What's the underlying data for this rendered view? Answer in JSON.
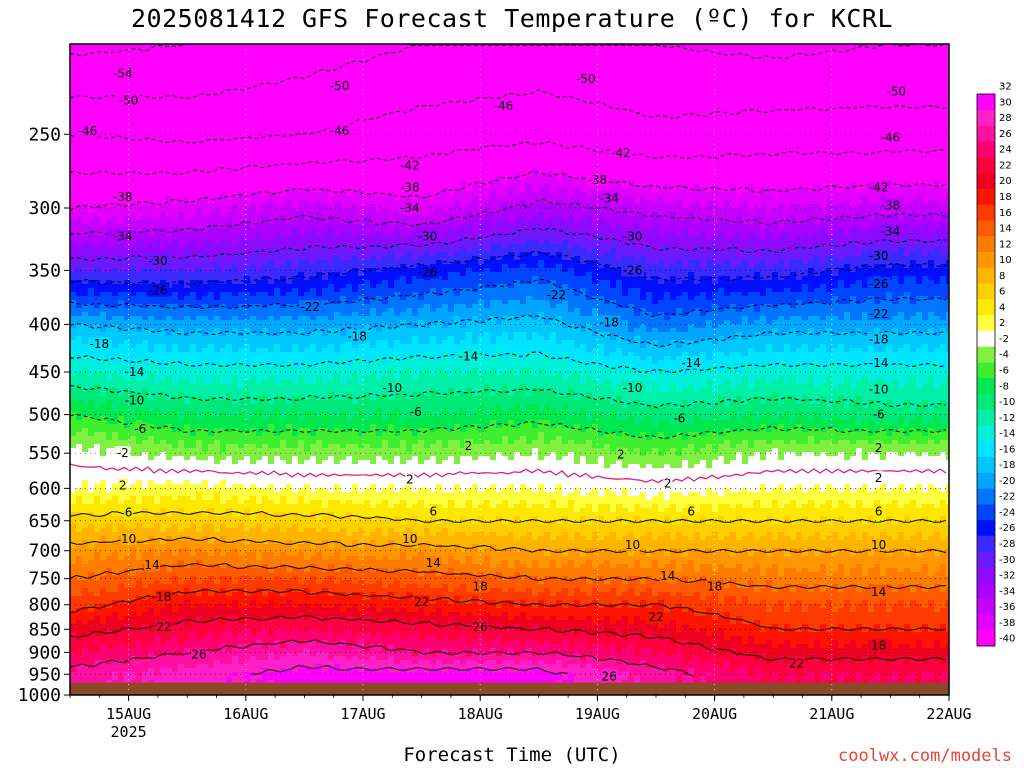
{
  "title": "2025081412 GFS Forecast Temperature (ºC) for KCRL",
  "xlabel": "Forecast Time (UTC)",
  "credit": "coolwx.com/models",
  "chart_data": {
    "type": "heatmap",
    "title": "2025081412 GFS Forecast Temperature (ºC) for KCRL",
    "xlabel": "Forecast Time (UTC)",
    "ylabel": "",
    "y_scale": "log-pressure (hPa), inverted",
    "x_ticks": [
      {
        "label": "15AUG",
        "sub": "2025",
        "day": 1
      },
      {
        "label": "16AUG",
        "sub": "",
        "day": 2
      },
      {
        "label": "17AUG",
        "sub": "",
        "day": 3
      },
      {
        "label": "18AUG",
        "sub": "",
        "day": 4
      },
      {
        "label": "19AUG",
        "sub": "",
        "day": 5
      },
      {
        "label": "20AUG",
        "sub": "",
        "day": 6
      },
      {
        "label": "21AUG",
        "sub": "",
        "day": 7
      },
      {
        "label": "22AUG",
        "sub": "",
        "day": 8
      }
    ],
    "xlim_days": [
      0.5,
      8.0
    ],
    "y_ticks": [
      250,
      300,
      350,
      400,
      450,
      500,
      550,
      600,
      650,
      700,
      750,
      800,
      850,
      900,
      950,
      1000
    ],
    "ylim": [
      200,
      1000
    ],
    "ground_pressure": 970,
    "grid": true,
    "colorbar": {
      "levels": [
        -40,
        -38,
        -36,
        -34,
        -32,
        -30,
        -28,
        -26,
        -24,
        -22,
        -20,
        -18,
        -16,
        -14,
        -12,
        -10,
        -8,
        -6,
        -4,
        -2,
        2,
        4,
        6,
        8,
        10,
        12,
        14,
        16,
        18,
        20,
        22,
        24,
        26,
        28,
        30,
        32
      ],
      "colors": [
        "#ff00ff",
        "#e300ff",
        "#c800ff",
        "#ad00ff",
        "#8d0aff",
        "#6a1aff",
        "#3a2aff",
        "#0010ff",
        "#0044ff",
        "#0076ff",
        "#00a6ff",
        "#00c8ff",
        "#00e5ff",
        "#00f0d8",
        "#00f0a8",
        "#00e878",
        "#00e850",
        "#40ee30",
        "#80f040",
        "#ffffff",
        "#ffff40",
        "#ffe800",
        "#ffd000",
        "#ffb400",
        "#ff9800",
        "#ff7c00",
        "#ff5a00",
        "#ff3a00",
        "#ff1400",
        "#f00020",
        "#ff0040",
        "#ff0070",
        "#ff10a0",
        "#ff20c8",
        "#ff00ff"
      ]
    },
    "profiles": [
      {
        "day": 0.5,
        "p": [
          200,
          250,
          300,
          350,
          400,
          450,
          500,
          550,
          600,
          650,
          700,
          750,
          800,
          850,
          900,
          950
        ],
        "t": [
          -55,
          -46,
          -38,
          -28,
          -18,
          -12,
          -6,
          -1,
          2,
          7,
          11,
          14,
          17,
          21,
          24,
          27
        ]
      },
      {
        "day": 1.5,
        "p": [
          200,
          250,
          300,
          350,
          400,
          450,
          500,
          550,
          600,
          650,
          700,
          750,
          800,
          850,
          900,
          950
        ],
        "t": [
          -54,
          -47,
          -37,
          -28,
          -19,
          -13,
          -8,
          -3,
          3,
          7,
          12,
          16,
          20,
          23,
          26,
          29
        ]
      },
      {
        "day": 2.5,
        "p": [
          200,
          250,
          300,
          350,
          400,
          450,
          500,
          550,
          600,
          650,
          700,
          750,
          800,
          850,
          900,
          950
        ],
        "t": [
          -52,
          -46,
          -35,
          -27,
          -19,
          -13,
          -8,
          -3,
          2,
          7,
          11,
          16,
          20,
          24,
          28,
          31
        ]
      },
      {
        "day": 3.5,
        "p": [
          200,
          250,
          300,
          350,
          400,
          450,
          500,
          550,
          600,
          650,
          700,
          750,
          800,
          850,
          900,
          950
        ],
        "t": [
          -50,
          -44,
          -37,
          -25,
          -18,
          -12,
          -8,
          -3,
          2,
          6,
          11,
          15,
          19,
          23,
          26,
          31
        ]
      },
      {
        "day": 4.5,
        "p": [
          200,
          250,
          300,
          350,
          400,
          450,
          500,
          550,
          600,
          650,
          700,
          750,
          800,
          850,
          900,
          950
        ],
        "t": [
          -49,
          -43,
          -33,
          -23,
          -17,
          -12,
          -7,
          -2,
          2,
          6,
          10,
          14,
          18,
          22,
          26,
          31
        ]
      },
      {
        "day": 5.5,
        "p": [
          200,
          250,
          300,
          350,
          400,
          450,
          500,
          550,
          600,
          650,
          700,
          750,
          800,
          850,
          900,
          950
        ],
        "t": [
          -50,
          -45,
          -35,
          -27,
          -21,
          -14,
          -9,
          -4,
          1,
          6,
          10,
          14,
          18,
          21,
          24,
          27
        ]
      },
      {
        "day": 6.5,
        "p": [
          200,
          250,
          300,
          350,
          400,
          450,
          500,
          550,
          600,
          650,
          700,
          750,
          800,
          850,
          900,
          950
        ],
        "t": [
          -51,
          -44,
          -36,
          -27,
          -19,
          -13,
          -8,
          -2,
          2,
          6,
          10,
          13,
          16,
          18,
          21,
          24
        ]
      },
      {
        "day": 7.5,
        "p": [
          200,
          250,
          300,
          350,
          400,
          450,
          500,
          550,
          600,
          650,
          700,
          750,
          800,
          850,
          900,
          950
        ],
        "t": [
          -50,
          -44,
          -35,
          -25,
          -19,
          -13,
          -9,
          -2,
          2,
          6,
          10,
          13,
          16,
          18,
          21,
          24
        ]
      }
    ],
    "contour_labels": [
      {
        "value": "-54",
        "day": 0.95,
        "p": 215
      },
      {
        "value": "-50",
        "day": 1.0,
        "p": 230
      },
      {
        "value": "-46",
        "day": 0.65,
        "p": 248
      },
      {
        "value": "-50",
        "day": 2.8,
        "p": 222
      },
      {
        "value": "-50",
        "day": 4.9,
        "p": 218
      },
      {
        "value": "-50",
        "day": 7.55,
        "p": 225
      },
      {
        "value": "-46",
        "day": 2.8,
        "p": 248
      },
      {
        "value": "-46",
        "day": 4.2,
        "p": 233
      },
      {
        "value": "-46",
        "day": 7.5,
        "p": 252
      },
      {
        "value": "-42",
        "day": 3.4,
        "p": 270
      },
      {
        "value": "-42",
        "day": 5.2,
        "p": 262
      },
      {
        "value": "-42",
        "day": 7.4,
        "p": 285
      },
      {
        "value": "-38",
        "day": 0.95,
        "p": 292
      },
      {
        "value": "-38",
        "day": 3.4,
        "p": 285
      },
      {
        "value": "-38",
        "day": 5.0,
        "p": 280
      },
      {
        "value": "-38",
        "day": 7.5,
        "p": 298
      },
      {
        "value": "-34",
        "day": 0.95,
        "p": 322
      },
      {
        "value": "-34",
        "day": 3.4,
        "p": 300
      },
      {
        "value": "-34",
        "day": 5.1,
        "p": 293
      },
      {
        "value": "-34",
        "day": 7.5,
        "p": 318
      },
      {
        "value": "-30",
        "day": 1.25,
        "p": 342
      },
      {
        "value": "-30",
        "day": 3.55,
        "p": 322
      },
      {
        "value": "-30",
        "day": 5.3,
        "p": 322
      },
      {
        "value": "-30",
        "day": 7.4,
        "p": 338
      },
      {
        "value": "-26",
        "day": 1.25,
        "p": 368
      },
      {
        "value": "-26",
        "day": 3.55,
        "p": 352
      },
      {
        "value": "-26",
        "day": 5.3,
        "p": 350
      },
      {
        "value": "-26",
        "day": 7.4,
        "p": 362
      },
      {
        "value": "-22",
        "day": 2.55,
        "p": 383
      },
      {
        "value": "-22",
        "day": 4.65,
        "p": 372
      },
      {
        "value": "-22",
        "day": 7.4,
        "p": 390
      },
      {
        "value": "-18",
        "day": 0.75,
        "p": 420
      },
      {
        "value": "-18",
        "day": 2.95,
        "p": 412
      },
      {
        "value": "-18",
        "day": 5.1,
        "p": 398
      },
      {
        "value": "-18",
        "day": 7.4,
        "p": 415
      },
      {
        "value": "-14",
        "day": 1.05,
        "p": 450
      },
      {
        "value": "-14",
        "day": 3.9,
        "p": 433
      },
      {
        "value": "-14",
        "day": 5.8,
        "p": 440
      },
      {
        "value": "-14",
        "day": 7.4,
        "p": 440
      },
      {
        "value": "-10",
        "day": 1.05,
        "p": 483
      },
      {
        "value": "-10",
        "day": 3.25,
        "p": 468
      },
      {
        "value": "-10",
        "day": 5.3,
        "p": 468
      },
      {
        "value": "-10",
        "day": 7.4,
        "p": 470
      },
      {
        "value": "-6",
        "day": 1.1,
        "p": 518
      },
      {
        "value": "-6",
        "day": 3.45,
        "p": 497
      },
      {
        "value": "-6",
        "day": 5.7,
        "p": 505
      },
      {
        "value": "-6",
        "day": 7.4,
        "p": 500
      },
      {
        "value": "-2",
        "day": 0.95,
        "p": 550
      },
      {
        "value": "2",
        "day": 3.9,
        "p": 540
      },
      {
        "value": "2",
        "day": 5.2,
        "p": 552
      },
      {
        "value": "2",
        "day": 7.4,
        "p": 543
      },
      {
        "value": "2",
        "day": 0.95,
        "p": 596
      },
      {
        "value": "2",
        "day": 3.4,
        "p": 587
      },
      {
        "value": "2",
        "day": 5.6,
        "p": 593
      },
      {
        "value": "2",
        "day": 7.4,
        "p": 585
      },
      {
        "value": "6",
        "day": 1.0,
        "p": 637
      },
      {
        "value": "6",
        "day": 3.6,
        "p": 635
      },
      {
        "value": "6",
        "day": 5.8,
        "p": 635
      },
      {
        "value": "6",
        "day": 7.4,
        "p": 635
      },
      {
        "value": "10",
        "day": 1.0,
        "p": 680
      },
      {
        "value": "10",
        "day": 3.4,
        "p": 680
      },
      {
        "value": "10",
        "day": 5.3,
        "p": 690
      },
      {
        "value": "10",
        "day": 7.4,
        "p": 690
      },
      {
        "value": "14",
        "day": 1.2,
        "p": 725
      },
      {
        "value": "14",
        "day": 3.6,
        "p": 722
      },
      {
        "value": "14",
        "day": 5.6,
        "p": 745
      },
      {
        "value": "14",
        "day": 7.4,
        "p": 775
      },
      {
        "value": "18",
        "day": 1.3,
        "p": 785
      },
      {
        "value": "18",
        "day": 4.0,
        "p": 765
      },
      {
        "value": "18",
        "day": 6.0,
        "p": 765
      },
      {
        "value": "18",
        "day": 7.4,
        "p": 885
      },
      {
        "value": "22",
        "day": 1.3,
        "p": 845
      },
      {
        "value": "22",
        "day": 3.5,
        "p": 795
      },
      {
        "value": "22",
        "day": 5.5,
        "p": 825
      },
      {
        "value": "22",
        "day": 6.7,
        "p": 925
      },
      {
        "value": "26",
        "day": 1.6,
        "p": 905
      },
      {
        "value": "26",
        "day": 4.0,
        "p": 845
      },
      {
        "value": "26",
        "day": 5.1,
        "p": 955
      }
    ]
  }
}
